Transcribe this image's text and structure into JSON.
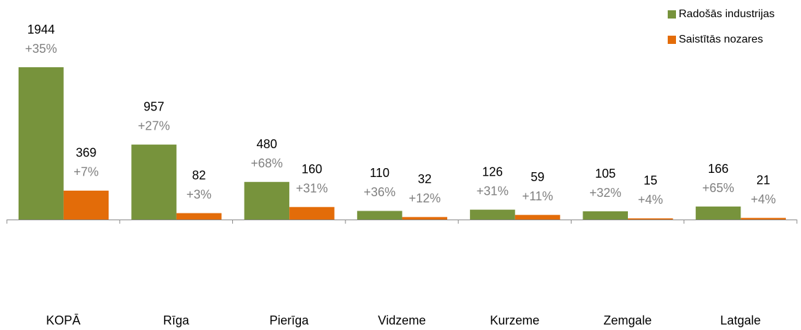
{
  "chart_data": {
    "type": "bar",
    "categories": [
      "KOPĀ",
      "Rīga",
      "Pierīga",
      "Vidzeme",
      "Kurzeme",
      "Zemgale",
      "Latgale"
    ],
    "series": [
      {
        "name": "Radošās industrijas",
        "color": "#77933c",
        "values": [
          1944,
          957,
          480,
          110,
          126,
          105,
          166
        ],
        "change_labels": [
          "+35%",
          "+27%",
          "+68%",
          "+36%",
          "+31%",
          "+32%",
          "+65%"
        ]
      },
      {
        "name": "Saistītās nozares",
        "color": "#e36c09",
        "values": [
          369,
          82,
          160,
          32,
          59,
          15,
          21
        ],
        "change_labels": [
          "+7%",
          "+3%",
          "+31%",
          "+12%",
          "+11%",
          "+4%",
          "+4%"
        ]
      }
    ],
    "legend": "upper right"
  }
}
